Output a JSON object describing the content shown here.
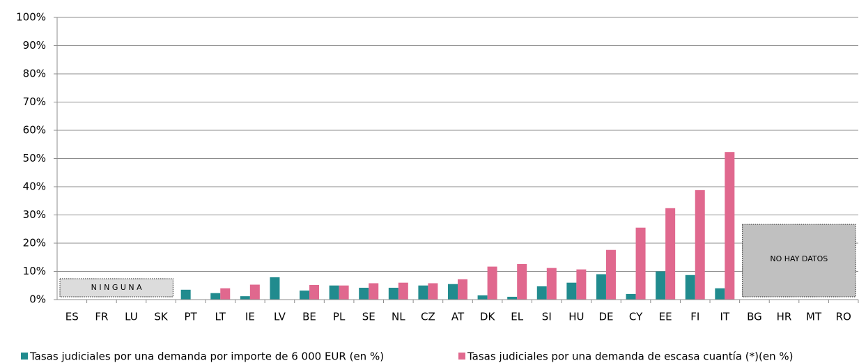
{
  "chart_data": {
    "type": "bar",
    "categories": [
      "ES",
      "FR",
      "LU",
      "SK",
      "PT",
      "LT",
      "IE",
      "LV",
      "BE",
      "PL",
      "SE",
      "NL",
      "CZ",
      "AT",
      "DK",
      "EL",
      "SI",
      "HU",
      "DE",
      "CY",
      "EE",
      "FI",
      "IT",
      "BG",
      "HR",
      "MT",
      "RO"
    ],
    "series": [
      {
        "name": "Tasas judiciales por una demanda por importe de 6 000 EUR (en %)",
        "color": "#218b8e",
        "values": [
          null,
          null,
          null,
          null,
          3.5,
          2.3,
          1.2,
          7.9,
          3.2,
          5,
          4.2,
          4.2,
          5,
          5.5,
          1.5,
          1,
          4.7,
          6,
          9,
          2,
          10,
          8.7,
          4,
          null,
          null,
          null,
          null
        ]
      },
      {
        "name": "Tasas judiciales por una demanda de escasa cuantía (*)(en %)",
        "color": "#e0688e",
        "values": [
          null,
          null,
          null,
          null,
          null,
          4,
          5.3,
          null,
          5.2,
          5,
          5.8,
          6,
          5.8,
          7.2,
          11.7,
          12.6,
          11.2,
          10.7,
          17.6,
          25.5,
          32.4,
          38.8,
          52.3,
          null,
          null,
          null,
          null
        ]
      }
    ],
    "ylim": [
      0,
      100
    ],
    "yticks": [
      {
        "value": 0,
        "label": "0%"
      },
      {
        "value": 10,
        "label": "10%"
      },
      {
        "value": 20,
        "label": "20%"
      },
      {
        "value": 30,
        "label": "30%"
      },
      {
        "value": 40,
        "label": "40%"
      },
      {
        "value": 50,
        "label": "50%"
      },
      {
        "value": 60,
        "label": "60%"
      },
      {
        "value": 70,
        "label": "70%"
      },
      {
        "value": 80,
        "label": "80%"
      },
      {
        "value": 90,
        "label": "90%"
      },
      {
        "value": 100,
        "label": "100%"
      }
    ],
    "grid": true,
    "annotations": [
      "N I N G U N A",
      "NO HAY DATOS"
    ]
  }
}
